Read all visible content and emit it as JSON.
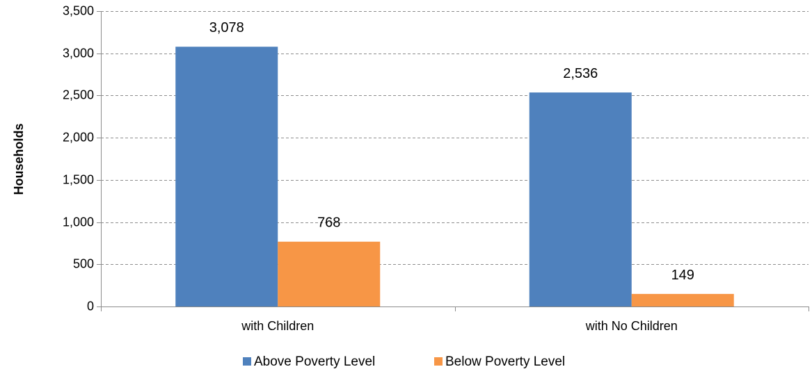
{
  "chart_data": {
    "type": "bar",
    "title": "",
    "xlabel": "",
    "ylabel": "Households",
    "ylim": [
      0,
      3500
    ],
    "yticks": [
      0,
      500,
      1000,
      1500,
      2000,
      2500,
      3000,
      3500
    ],
    "ytick_labels": [
      "0",
      "500",
      "1,000",
      "1,500",
      "2,000",
      "2,500",
      "3,000",
      "3,500"
    ],
    "categories": [
      "with Children",
      "with No Children"
    ],
    "series": [
      {
        "name": "Above Poverty Level",
        "values": [
          3078,
          2536
        ],
        "labels": [
          "3,078",
          "2,536"
        ],
        "color": "#4F81BD"
      },
      {
        "name": "Below Poverty Level",
        "values": [
          768,
          149
        ],
        "labels": [
          "768",
          "149"
        ],
        "color": "#F79646"
      }
    ],
    "grid": true,
    "legend_position": "bottom"
  }
}
